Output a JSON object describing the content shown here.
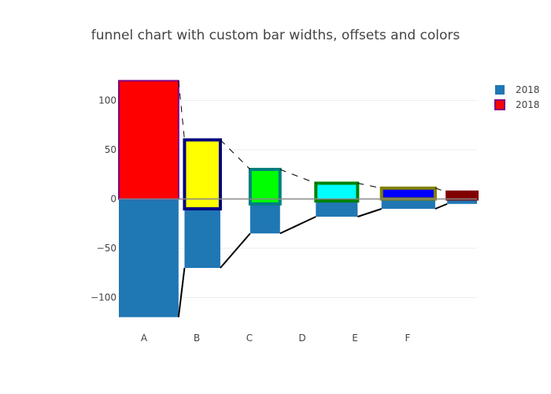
{
  "chart_data": {
    "type": "bar",
    "title": "funnel chart with custom bar widths, offsets and colors",
    "xlabel": "",
    "ylabel": "",
    "ylim": [
      -122,
      122
    ],
    "xlim": [
      -0.5,
      5.5
    ],
    "grid": true,
    "legend": "top-right",
    "x_ticks": [
      {
        "label": "A",
        "value": 0
      },
      {
        "label": "B",
        "value": 1
      },
      {
        "label": "C",
        "value": 2
      },
      {
        "label": "D",
        "value": 3
      },
      {
        "label": "E",
        "value": 4
      },
      {
        "label": "F",
        "value": 5
      }
    ],
    "y_ticks": [
      {
        "label": "100",
        "value": 100
      },
      {
        "label": "50",
        "value": 50
      },
      {
        "label": "0",
        "value": 0
      },
      {
        "label": "−50",
        "value": -50
      },
      {
        "label": "−100",
        "value": -100
      }
    ],
    "series": [
      {
        "name": "2018",
        "color": "#1f77b4",
        "line_color": "#000000",
        "line_dash": "solid",
        "bars": [
          {
            "x0": -0.5,
            "x1": 0.5,
            "base": 0,
            "value": -120
          },
          {
            "x0": 0.6,
            "x1": 1.2,
            "base": 0,
            "value": -70
          },
          {
            "x0": 1.7,
            "x1": 2.2,
            "base": 0,
            "value": -35
          },
          {
            "x0": 2.8,
            "x1": 3.5,
            "base": 0,
            "value": -18
          },
          {
            "x0": 3.9,
            "x1": 4.8,
            "base": 0,
            "value": -10
          },
          {
            "x0": 5.0,
            "x1": 5.8,
            "base": 0,
            "value": -5
          }
        ],
        "bar_colors": [
          "#1f77b4",
          "#1f77b4",
          "#1f77b4",
          "#1f77b4",
          "#1f77b4",
          "#1f77b4"
        ]
      },
      {
        "name": "2018",
        "color": "#ff0000",
        "line_color": "#000000",
        "line_dash": "dash",
        "bars": [
          {
            "x0": -0.5,
            "x1": 0.5,
            "base": 0,
            "value": 120
          },
          {
            "x0": 0.6,
            "x1": 1.2,
            "base": -10,
            "value": 70
          },
          {
            "x0": 1.7,
            "x1": 2.2,
            "base": -5,
            "value": 35
          },
          {
            "x0": 2.8,
            "x1": 3.5,
            "base": -2,
            "value": 18
          },
          {
            "x0": 3.9,
            "x1": 4.8,
            "base": 0,
            "value": 11
          },
          {
            "x0": 5.0,
            "x1": 5.8,
            "base": 0,
            "value": 7
          }
        ],
        "bar_colors": [
          "#ff0000",
          "#ffff00",
          "#00ff00",
          "#00ffff",
          "#0000ff",
          "#800000"
        ],
        "bar_outlines": [
          "#800080",
          "#000080",
          "#008080",
          "#008000",
          "#808000",
          "#800000"
        ]
      }
    ]
  }
}
